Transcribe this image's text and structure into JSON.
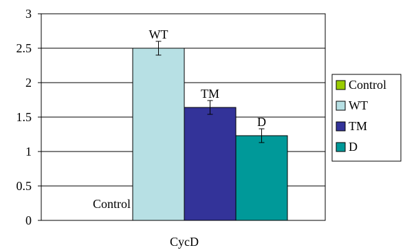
{
  "chart_data": {
    "type": "bar",
    "categories": [
      "CycD"
    ],
    "xlabel": "CycD",
    "ylabel": "",
    "title": "",
    "ylim": [
      0,
      3
    ],
    "yticks": [
      0,
      0.5,
      1,
      1.5,
      2,
      2.5,
      3
    ],
    "ytick_labels": [
      "0",
      "0.5",
      "1",
      "1.5",
      "2",
      "2.5",
      "3"
    ],
    "grid": true,
    "legend_position": "right",
    "series": [
      {
        "name": "Control",
        "values": [
          0
        ],
        "error": [
          0
        ],
        "color": "#99cc00",
        "bar_label": "Control"
      },
      {
        "name": "WT",
        "values": [
          2.5
        ],
        "error": [
          0.1
        ],
        "color": "#b7e0e4",
        "bar_label": "WT"
      },
      {
        "name": "TM",
        "values": [
          1.64
        ],
        "error": [
          0.1
        ],
        "color": "#333399",
        "bar_label": "TM"
      },
      {
        "name": "D",
        "values": [
          1.23
        ],
        "error": [
          0.1
        ],
        "color": "#009999",
        "bar_label": "D"
      }
    ]
  }
}
